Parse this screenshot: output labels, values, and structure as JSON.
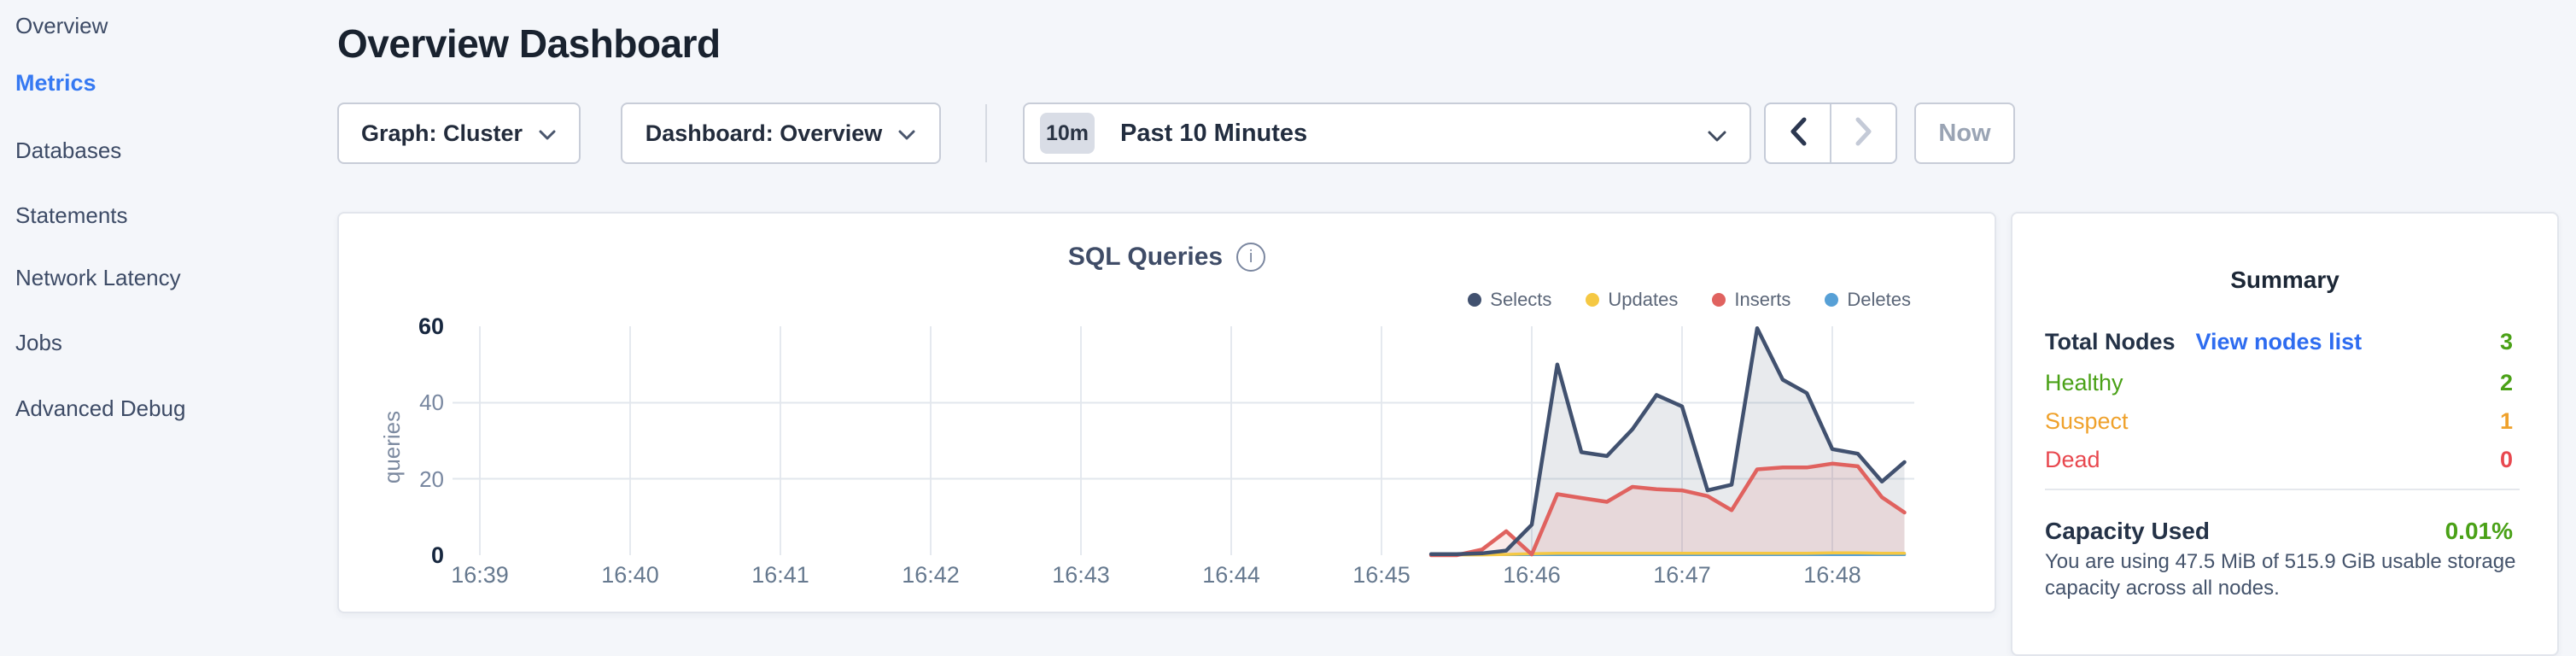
{
  "sidebar": {
    "items": [
      {
        "label": "Overview",
        "active": false
      },
      {
        "label": "Metrics",
        "active": true
      },
      {
        "label": "Databases",
        "active": false
      },
      {
        "label": "Statements",
        "active": false
      },
      {
        "label": "Network Latency",
        "active": false
      },
      {
        "label": "Jobs",
        "active": false
      },
      {
        "label": "Advanced Debug",
        "active": false
      }
    ]
  },
  "header": {
    "title": "Overview Dashboard"
  },
  "toolbar": {
    "graph_dropdown": {
      "label": "Graph: Cluster"
    },
    "dashboard_dropdown": {
      "label": "Dashboard: Overview"
    },
    "time_selector": {
      "badge": "10m",
      "label": "Past 10 Minutes"
    },
    "prev_arrow": "previous time window",
    "next_arrow": "next time window",
    "now_label": "Now"
  },
  "chart_data": {
    "type": "area",
    "title": "SQL Queries",
    "ylabel": "queries",
    "ylim": [
      0,
      60
    ],
    "y_ticks": [
      0,
      20,
      40,
      60
    ],
    "x_ticks": [
      {
        "t": 0,
        "label": "16:39"
      },
      {
        "t": 1,
        "label": "16:40"
      },
      {
        "t": 2,
        "label": "16:41"
      },
      {
        "t": 3,
        "label": "16:42"
      },
      {
        "t": 4,
        "label": "16:43"
      },
      {
        "t": 5,
        "label": "16:44"
      },
      {
        "t": 6,
        "label": "16:45"
      },
      {
        "t": 7,
        "label": "16:46"
      },
      {
        "t": 8,
        "label": "16:47"
      },
      {
        "t": 9,
        "label": "16:48"
      }
    ],
    "grid": true,
    "legend_position": "top-right",
    "series": [
      {
        "name": "Selects",
        "color": "#41516f",
        "fill": "rgba(65,81,111,0.12)",
        "line_width": 4.5,
        "points": [
          [
            6.33,
            0.3
          ],
          [
            6.5,
            0.3
          ],
          [
            6.67,
            0.5
          ],
          [
            6.83,
            1.2
          ],
          [
            7.0,
            8
          ],
          [
            7.17,
            50
          ],
          [
            7.33,
            27
          ],
          [
            7.5,
            26
          ],
          [
            7.67,
            33
          ],
          [
            7.83,
            42
          ],
          [
            8.0,
            39
          ],
          [
            8.17,
            17
          ],
          [
            8.33,
            18.5
          ],
          [
            8.5,
            59.5
          ],
          [
            8.67,
            46
          ],
          [
            8.83,
            42.5
          ],
          [
            9.0,
            27.8
          ],
          [
            9.17,
            26.6
          ],
          [
            9.33,
            19.3
          ],
          [
            9.48,
            24.4
          ]
        ]
      },
      {
        "name": "Updates",
        "color": "#f5c843",
        "fill": "none",
        "line_width": 3.5,
        "points": [
          [
            6.33,
            0.1
          ],
          [
            6.5,
            0.1
          ],
          [
            6.67,
            0.1
          ],
          [
            6.83,
            0.2
          ],
          [
            7.0,
            0.4
          ],
          [
            7.17,
            0.5
          ],
          [
            7.33,
            0.5
          ],
          [
            7.5,
            0.5
          ],
          [
            7.67,
            0.5
          ],
          [
            7.83,
            0.5
          ],
          [
            8.0,
            0.5
          ],
          [
            8.17,
            0.5
          ],
          [
            8.33,
            0.5
          ],
          [
            8.5,
            0.5
          ],
          [
            8.67,
            0.5
          ],
          [
            8.83,
            0.5
          ],
          [
            9.0,
            0.6
          ],
          [
            9.17,
            0.6
          ],
          [
            9.33,
            0.5
          ],
          [
            9.48,
            0.5
          ]
        ]
      },
      {
        "name": "Inserts",
        "color": "#e0625f",
        "fill": "rgba(224,98,95,0.13)",
        "line_width": 4.5,
        "points": [
          [
            6.33,
            0
          ],
          [
            6.5,
            0
          ],
          [
            6.67,
            1.5
          ],
          [
            6.83,
            6.3
          ],
          [
            7.0,
            0.2
          ],
          [
            7.17,
            16
          ],
          [
            7.33,
            15
          ],
          [
            7.5,
            14
          ],
          [
            7.67,
            17.9
          ],
          [
            7.83,
            17.3
          ],
          [
            8.0,
            17
          ],
          [
            8.17,
            15.5
          ],
          [
            8.33,
            11.8
          ],
          [
            8.5,
            22.5
          ],
          [
            8.67,
            23
          ],
          [
            8.83,
            23
          ],
          [
            9.0,
            24
          ],
          [
            9.17,
            23.3
          ],
          [
            9.33,
            15.2
          ],
          [
            9.48,
            11.2
          ]
        ]
      },
      {
        "name": "Deletes",
        "color": "#57a0d6",
        "fill": "none",
        "line_width": 3.5,
        "points": [
          [
            6.33,
            0.15
          ],
          [
            6.5,
            0.15
          ],
          [
            6.67,
            0.15
          ],
          [
            6.83,
            0.15
          ],
          [
            7.0,
            0.15
          ],
          [
            7.17,
            0.15
          ],
          [
            7.33,
            0.15
          ],
          [
            7.5,
            0.15
          ],
          [
            7.67,
            0.15
          ],
          [
            7.83,
            0.15
          ],
          [
            8.0,
            0.15
          ],
          [
            8.17,
            0.15
          ],
          [
            8.33,
            0.15
          ],
          [
            8.5,
            0.15
          ],
          [
            8.67,
            0.15
          ],
          [
            8.83,
            0.15
          ],
          [
            9.0,
            0.15
          ],
          [
            9.17,
            0.15
          ],
          [
            9.33,
            0.15
          ],
          [
            9.48,
            0.15
          ]
        ]
      }
    ]
  },
  "summary": {
    "title": "Summary",
    "rows": [
      {
        "label": "Total Nodes",
        "link": "View nodes list",
        "value": "3",
        "status": "green"
      },
      {
        "label": "Healthy",
        "value": "2",
        "status": "green"
      },
      {
        "label": "Suspect",
        "value": "1",
        "status": "orange"
      },
      {
        "label": "Dead",
        "value": "0",
        "status": "red"
      }
    ],
    "capacity": {
      "label": "Capacity Used",
      "value": "0.01%",
      "description": "You are using 47.5 MiB of 515.9 GiB usable storage capacity across all nodes."
    }
  },
  "colors": {
    "accent_blue": "#3679f2",
    "link_blue": "#2e6cf0",
    "healthy_green": "#4aa117",
    "suspect_orange": "#efa12b",
    "dead_red": "#e8484f",
    "page_background": "#f4f6fa"
  }
}
